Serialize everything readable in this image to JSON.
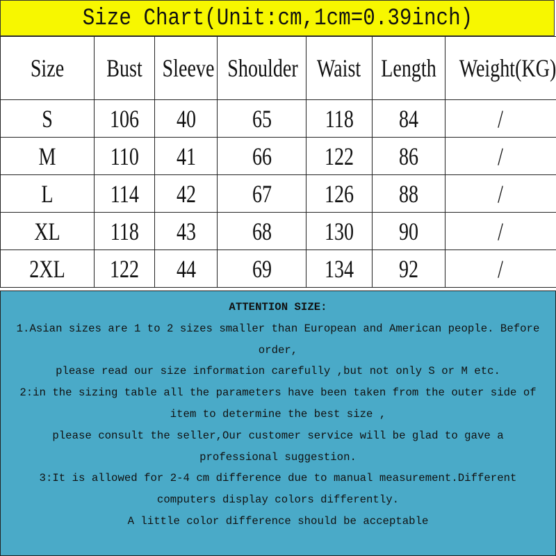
{
  "title": "Size Chart(Unit:cm,1cm=0.39inch)",
  "table": {
    "headers": [
      "Size",
      "Bust",
      "Sleeve",
      "Shoulder",
      "Waist",
      "Length",
      "Weight(KG)"
    ],
    "rows": [
      [
        "S",
        "106",
        "40",
        "65",
        "118",
        "84",
        "/"
      ],
      [
        "M",
        "110",
        "41",
        "66",
        "122",
        "86",
        "/"
      ],
      [
        "L",
        "114",
        "42",
        "67",
        "126",
        "88",
        "/"
      ],
      [
        "XL",
        "118",
        "43",
        "68",
        "130",
        "90",
        "/"
      ],
      [
        "2XL",
        "122",
        "44",
        "69",
        "134",
        "92",
        "/"
      ]
    ]
  },
  "notes": {
    "background": "#4aaac8",
    "heading": "ATTENTION SIZE:",
    "lines": [
      "1.Asian sizes are 1 to 2 sizes smaller than European and American people. Before",
      "order,",
      "please read our size information carefully ,but not only S or M etc.",
      "2:in the sizing table all the parameters have been taken from the outer side of",
      "item to determine the best size ,",
      "please consult the seller,Our customer service will be glad to gave a",
      "professional suggestion.",
      "3:It is allowed for 2-4 cm difference due to manual measurement.Different",
      "computers display colors differently.",
      "A little color difference should be acceptable"
    ]
  }
}
